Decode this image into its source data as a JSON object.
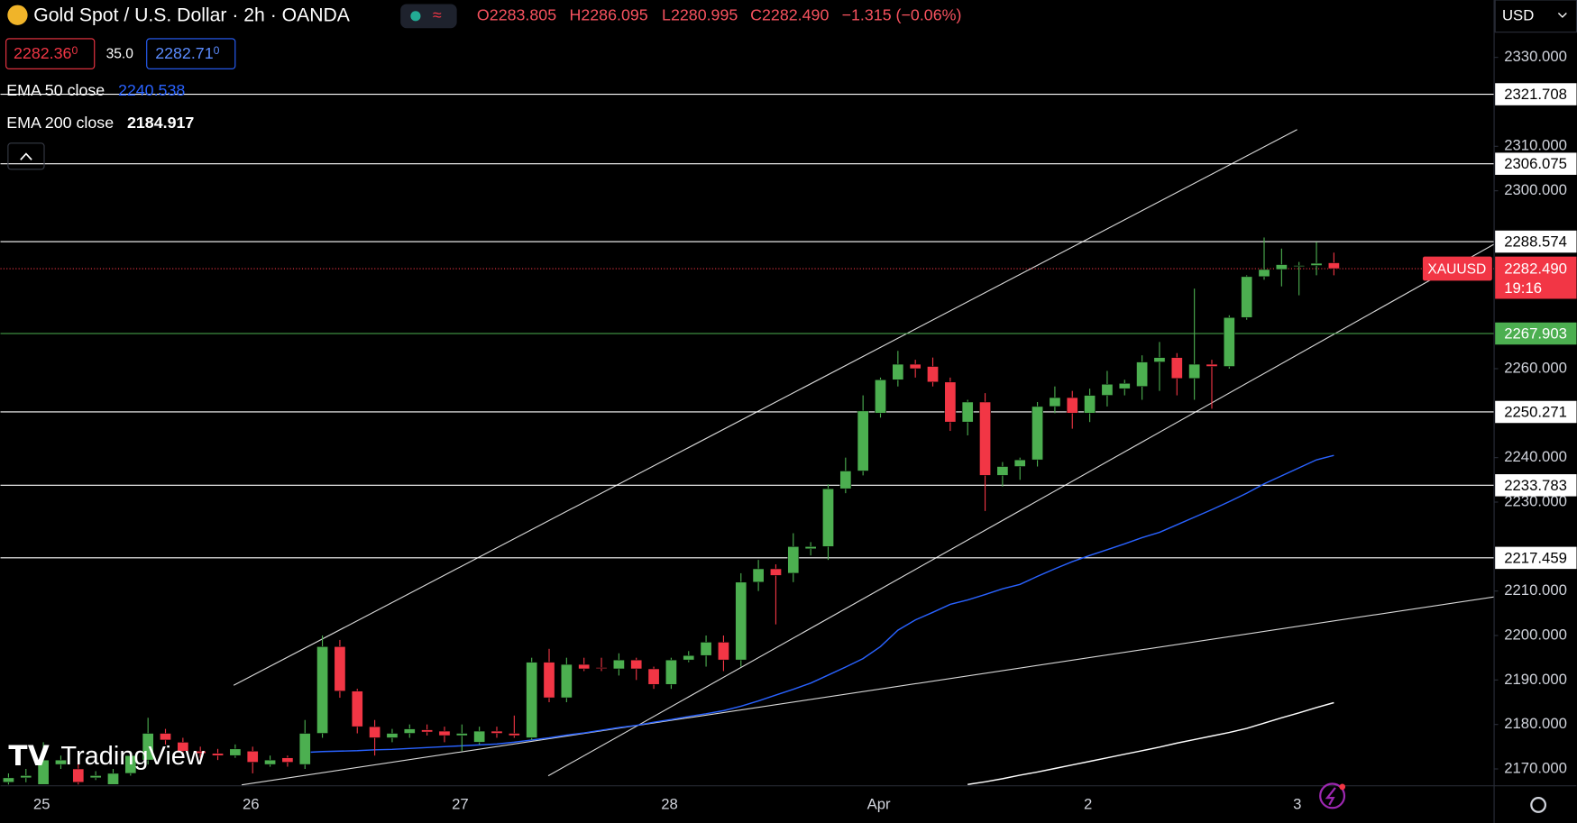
{
  "header": {
    "title": "Gold Spot / U.S. Dollar · 2h · OANDA",
    "open": "O2283.805",
    "high": "H2286.095",
    "low": "L2280.995",
    "close": "C2282.490",
    "change": "−1.315 (−0.06%)",
    "bid": "2282.36",
    "bid_sup": "0",
    "spread": "35.0",
    "ask": "2282.71",
    "ask_sup": "0",
    "ema50": {
      "label": "EMA 50 close",
      "value": "2240.538"
    },
    "ema200": {
      "label": "EMA 200 close",
      "value": "2184.917"
    },
    "currency": "USD",
    "logo": "TradingView"
  },
  "chart_data": {
    "type": "candlestick",
    "categories": [
      null,
      null,
      "25",
      null,
      null,
      null,
      null,
      null,
      null,
      null,
      null,
      null,
      null,
      null,
      "26",
      null,
      null,
      null,
      null,
      null,
      null,
      null,
      null,
      null,
      null,
      null,
      "27",
      null,
      null,
      null,
      null,
      null,
      null,
      null,
      null,
      null,
      null,
      null,
      "28",
      null,
      null,
      null,
      null,
      null,
      null,
      null,
      null,
      null,
      null,
      null,
      "Apr",
      null,
      null,
      null,
      null,
      null,
      null,
      null,
      null,
      null,
      null,
      null,
      "2",
      null,
      null,
      null,
      null,
      null,
      null,
      null,
      null,
      null,
      null,
      null,
      "3",
      null,
      null
    ],
    "open": [
      2167,
      2168,
      2166.5,
      2171,
      2170,
      2168,
      2166.5,
      2169,
      2172,
      2178,
      2176,
      2174,
      2173.5,
      2173,
      2174,
      2171,
      2172.5,
      2171,
      2178,
      2197.5,
      2187.5,
      2179.5,
      2177,
      2178,
      2178.8,
      2178.5,
      2177.5,
      2176,
      2178.5,
      2178,
      2177,
      2194,
      2186,
      2193.5,
      2192.8,
      2192.5,
      2194.5,
      2192.5,
      2189,
      2194.5,
      2195.5,
      2198.5,
      2194.5,
      2212,
      2215,
      2214,
      2219.5,
      2220,
      2233,
      2237,
      2250,
      2257.5,
      2261,
      2260.5,
      2257,
      2248,
      2252.5,
      2236,
      2238,
      2239.5,
      2251.5,
      2253.5,
      2250,
      2254,
      2255.5,
      2256,
      2261.5,
      2262.5,
      2257.8,
      2261,
      2260.5,
      2271.5,
      2280.7,
      2282.3,
      2283,
      2283.2,
      2283.805
    ],
    "high": [
      2169,
      2170,
      2176,
      2173,
      2172,
      2169.5,
      2170,
      2174,
      2181.5,
      2179,
      2177,
      2175,
      2174.5,
      2175.5,
      2175,
      2173,
      2173,
      2181,
      2200,
      2199,
      2188,
      2181,
      2179,
      2180,
      2180,
      2179.5,
      2180,
      2179.5,
      2179.5,
      2182,
      2195,
      2197,
      2195,
      2195,
      2195,
      2196,
      2195,
      2193,
      2195,
      2196.5,
      2200,
      2200,
      2214,
      2217,
      2216,
      2223,
      2221,
      2234,
      2240,
      2254,
      2258,
      2264,
      2262,
      2262.5,
      2258,
      2253,
      2254.5,
      2239,
      2240,
      2252.5,
      2256,
      2255,
      2255.5,
      2259.5,
      2257.5,
      2263,
      2266,
      2263.5,
      2278,
      2262,
      2272,
      2281,
      2289.5,
      2287,
      2284,
      2288.5,
      2286.095
    ],
    "low": [
      2166.5,
      2167,
      2166.5,
      2170,
      2166.5,
      2167.5,
      2166.5,
      2168.5,
      2171,
      2175.5,
      2173.5,
      2172.5,
      2172,
      2172.5,
      2169,
      2170.5,
      2170.5,
      2170,
      2177,
      2186,
      2178,
      2173,
      2176,
      2177,
      2177.5,
      2176,
      2174,
      2175.5,
      2177,
      2177,
      2176.5,
      2185,
      2185,
      2192,
      2192,
      2191,
      2190,
      2188,
      2188,
      2194,
      2193,
      2192,
      2193,
      2210,
      2202.5,
      2212,
      2218,
      2217,
      2232,
      2236,
      2249,
      2256,
      2258,
      2256,
      2246,
      2245,
      2228,
      2233.5,
      2235,
      2238,
      2250,
      2246.5,
      2248,
      2251.5,
      2254,
      2253,
      2255,
      2254,
      2253,
      2251,
      2260,
      2271,
      2280,
      2278.5,
      2276.5,
      2281,
      2280.995
    ],
    "close": [
      2168,
      2168.5,
      2172,
      2172,
      2167,
      2168.5,
      2169,
      2173,
      2178,
      2176.5,
      2174,
      2173.5,
      2173,
      2174.5,
      2171.5,
      2172,
      2171.5,
      2178,
      2197.5,
      2187.5,
      2179.5,
      2177,
      2178,
      2179,
      2178.3,
      2177.5,
      2178,
      2178.5,
      2178,
      2177.5,
      2194,
      2186,
      2193.5,
      2192.5,
      2192.6,
      2194.5,
      2192.5,
      2189,
      2194.5,
      2195.5,
      2198.5,
      2194.5,
      2212,
      2215,
      2213.5,
      2220,
      2220,
      2233,
      2237,
      2250.5,
      2257.5,
      2261,
      2260,
      2257,
      2248,
      2252.5,
      2236,
      2238,
      2239.5,
      2251.5,
      2253.5,
      2250,
      2254,
      2256.5,
      2256.7,
      2261.5,
      2262.5,
      2257.8,
      2261,
      2260.5,
      2271.5,
      2280.7,
      2282.3,
      2283.4,
      2283.2,
      2283.7,
      2282.49
    ],
    "up_color": "#4caf50",
    "down_color": "#f23645",
    "lines": [
      {
        "color": "#2962ff",
        "values": [
          null,
          null,
          null,
          null,
          null,
          null,
          null,
          null,
          null,
          null,
          null,
          null,
          null,
          null,
          null,
          null,
          null,
          2173.7,
          2173.9,
          2174.0,
          2174.1,
          2174.3,
          2174.4,
          2174.6,
          2174.8,
          2175.0,
          2175.2,
          2175.4,
          2175.6,
          2176.0,
          2176.5,
          2177.0,
          2177.6,
          2178.1,
          2178.7,
          2179.3,
          2179.8,
          2180.5,
          2181.1,
          2181.8,
          2182.4,
          2183.1,
          2184.1,
          2185.3,
          2186.6,
          2187.9,
          2189.3,
          2191.1,
          2192.9,
          2194.8,
          2197.5,
          2201.2,
          2203.5,
          2205.2,
          2207.0,
          2208.0,
          2209.2,
          2210.5,
          2211.5,
          2213.3,
          2215.0,
          2216.6,
          2218.0,
          2219.3,
          2220.6,
          2222.0,
          2223.2,
          2224.9,
          2226.6,
          2228.3,
          2230.1,
          2232.0,
          2234.1,
          2235.9,
          2237.7,
          2239.5,
          2240.5
        ]
      },
      {
        "color": "#ffffff",
        "values": [
          null,
          null,
          null,
          null,
          null,
          null,
          null,
          null,
          null,
          null,
          null,
          null,
          null,
          null,
          null,
          null,
          null,
          null,
          null,
          null,
          null,
          null,
          null,
          null,
          null,
          null,
          null,
          null,
          null,
          null,
          null,
          null,
          null,
          null,
          null,
          null,
          null,
          null,
          null,
          null,
          null,
          null,
          null,
          null,
          null,
          null,
          null,
          null,
          null,
          null,
          null,
          null,
          null,
          null,
          null,
          2166.5,
          2167.1,
          2167.8,
          2168.6,
          2169.3,
          2170.1,
          2170.9,
          2171.7,
          2172.5,
          2173.3,
          2174.1,
          2174.9,
          2175.8,
          2176.6,
          2177.4,
          2178.2,
          2179.1,
          2180.3,
          2181.5,
          2182.6,
          2183.8,
          2184.9
        ]
      }
    ],
    "ylim": [
      2166.2,
      2342.9
    ],
    "yticks": [
      {
        "value": 2330,
        "label": "2330.000"
      },
      {
        "value": 2310,
        "label": "2310.000"
      },
      {
        "value": 2300,
        "label": "2300.000"
      },
      {
        "value": 2260,
        "label": "2260.000"
      },
      {
        "value": 2240,
        "label": "2240.000"
      },
      {
        "value": 2230,
        "label": "2230.000"
      },
      {
        "value": 2210,
        "label": "2210.000"
      },
      {
        "value": 2200,
        "label": "2200.000"
      },
      {
        "value": 2190,
        "label": "2190.000"
      },
      {
        "value": 2180,
        "label": "2180.000"
      },
      {
        "value": 2170,
        "label": "2170.000"
      }
    ],
    "levels": [
      2321.708,
      2306.075,
      2288.574,
      2267.903,
      2250.271,
      2233.783,
      2217.459
    ],
    "level_colors": [
      "#ffffff",
      "#ffffff",
      "#ffffff",
      "#4caf50",
      "#ffffff",
      "#ffffff",
      "#ffffff"
    ],
    "last": {
      "value": 2282.49,
      "label": "2282.490"
    },
    "symbol": "XAUUSD",
    "countdown": "19:16",
    "last_color": "#f23645"
  }
}
